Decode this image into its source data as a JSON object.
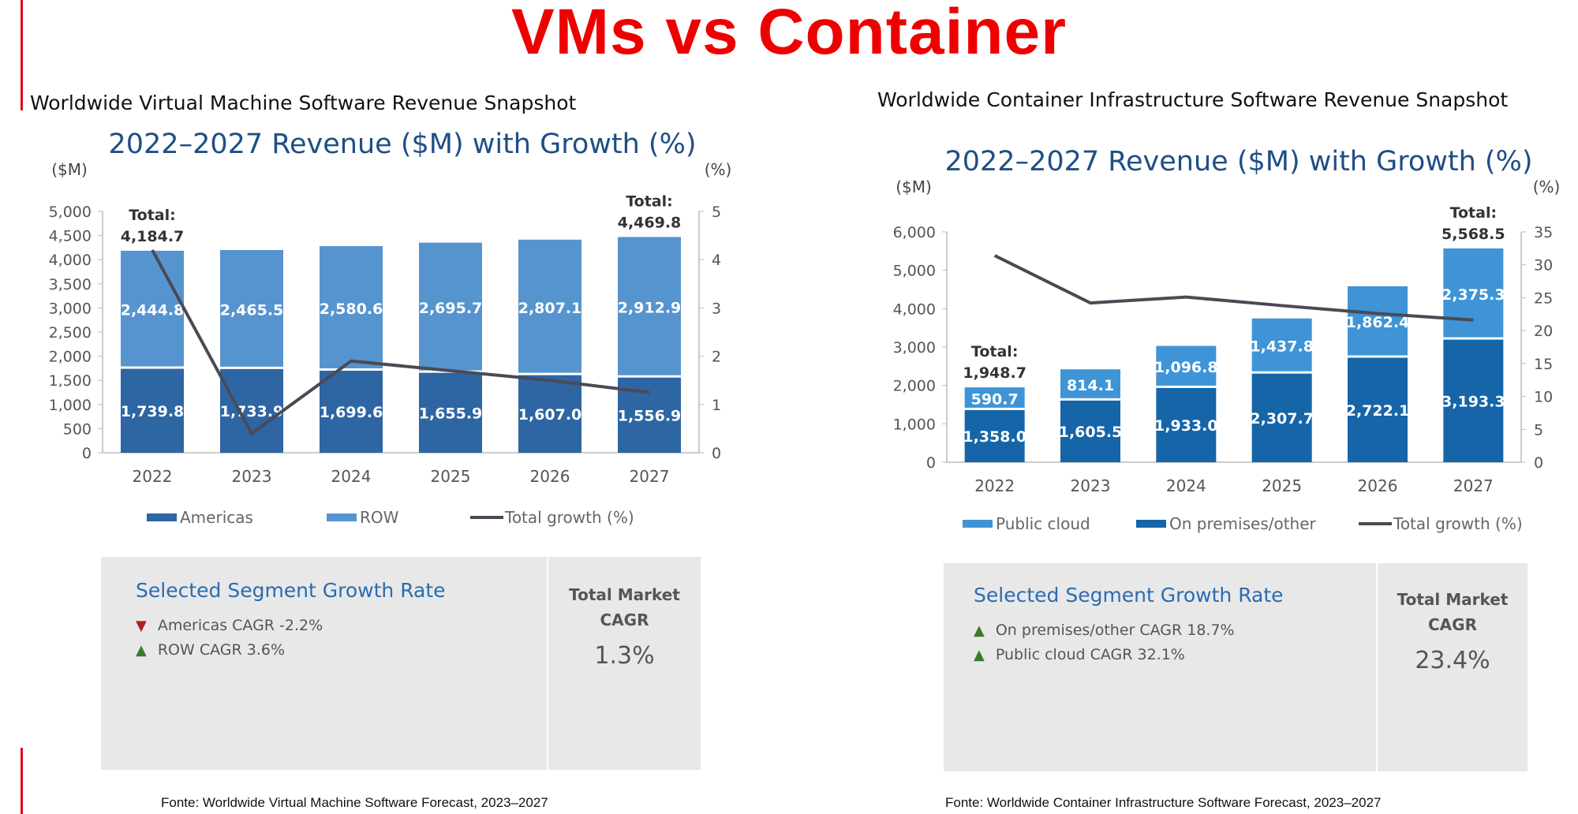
{
  "page_title": "VMs vs Container",
  "colors": {
    "title_red": "#ee0000",
    "vm_americas": "#2e65a3",
    "vm_row": "#5694cf",
    "ct_public_cloud": "#3e94d6",
    "ct_on_prem": "#1565a8",
    "growth_line": "#4a4a55",
    "chart_title": "#1f4e86",
    "segment_title": "#2a6cb0"
  },
  "vm": {
    "snapshot_title": "Worldwide Virtual Machine Software Revenue Snapshot",
    "segment": {
      "title": "Selected Segment Growth Rate",
      "items": [
        {
          "text": "Americas CAGR -2.2%",
          "direction": "down"
        },
        {
          "text": "ROW CAGR 3.6%",
          "direction": "up"
        }
      ],
      "cagr_label_line1": "Total Market",
      "cagr_label_line2": "CAGR",
      "cagr_value": "1.3%"
    },
    "source": "Fonte: Worldwide Virtual Machine Software Forecast, 2023–2027"
  },
  "container": {
    "snapshot_title": "Worldwide Container Infrastructure Software Revenue Snapshot",
    "segment": {
      "title": "Selected Segment Growth Rate",
      "items": [
        {
          "text": "On premises/other CAGR 18.7%",
          "direction": "up"
        },
        {
          "text": "Public cloud CAGR 32.1%",
          "direction": "up"
        }
      ],
      "cagr_label_line1": "Total Market",
      "cagr_label_line2": "CAGR",
      "cagr_value": "23.4%"
    },
    "source": "Fonte: Worldwide Container Infrastructure Software Forecast, 2023–2027"
  },
  "chart_data": [
    {
      "type": "bar",
      "stacked": true,
      "title": "2022–2027 Revenue ($M) with Growth (%)",
      "ylabel": "($M)",
      "y2label": "(%)",
      "categories": [
        "2022",
        "2023",
        "2024",
        "2025",
        "2026",
        "2027"
      ],
      "ylim": [
        0,
        5000
      ],
      "yticks": [
        "0",
        "500",
        "1,000",
        "1,500",
        "2,000",
        "2,500",
        "3,000",
        "3,500",
        "4,000",
        "4,500",
        "5,000"
      ],
      "y2lim": [
        0,
        5
      ],
      "y2ticks": [
        "0",
        "1",
        "2",
        "3",
        "4",
        "5"
      ],
      "series": [
        {
          "name": "Americas",
          "values": [
            1739.8,
            1733.9,
            1699.6,
            1655.9,
            1607.0,
            1556.9
          ],
          "labels": [
            "1,739.8",
            "1,733.9",
            "1,699.6",
            "1,655.9",
            "1,607.0",
            "1,556.9"
          ]
        },
        {
          "name": "ROW",
          "values": [
            2444.8,
            2465.5,
            2580.6,
            2695.7,
            2807.1,
            2912.9
          ],
          "labels": [
            "2,444.8",
            "2,465.5",
            "2,580.6",
            "2,695.7",
            "2,807.1",
            "2,912.9"
          ]
        }
      ],
      "line": {
        "name": "Total growth (%)",
        "values": [
          4.2,
          0.4,
          1.9,
          1.7,
          1.5,
          1.25
        ]
      },
      "totals": [
        {
          "index": 0,
          "label": "Total:",
          "value": "4,184.7"
        },
        {
          "index": 5,
          "label": "Total:",
          "value": "4,469.8"
        }
      ],
      "legend": [
        "Americas",
        "ROW",
        "Total growth (%)"
      ],
      "legend_position": "bottom"
    },
    {
      "type": "bar",
      "stacked": true,
      "title": "2022–2027 Revenue ($M) with Growth (%)",
      "ylabel": "($M)",
      "y2label": "(%)",
      "categories": [
        "2022",
        "2023",
        "2024",
        "2025",
        "2026",
        "2027"
      ],
      "ylim": [
        0,
        6000
      ],
      "yticks": [
        "0",
        "1,000",
        "2,000",
        "3,000",
        "4,000",
        "5,000",
        "6,000"
      ],
      "y2lim": [
        0,
        35
      ],
      "y2ticks": [
        "0",
        "5",
        "10",
        "15",
        "20",
        "25",
        "30",
        "35"
      ],
      "series": [
        {
          "name": "On premises/other",
          "values": [
            1358.0,
            1605.5,
            1933.0,
            2307.7,
            2722.1,
            3193.3
          ],
          "labels": [
            "1,358.0",
            "1,605.5",
            "1,933.0",
            "2,307.7",
            "2,722.1",
            "3,193.3"
          ]
        },
        {
          "name": "Public cloud",
          "values": [
            590.7,
            814.1,
            1096.8,
            1437.8,
            1862.4,
            2375.3
          ],
          "labels": [
            "590.7",
            "814.1",
            "1,096.8",
            "1,437.8",
            "1,862.4",
            "2,375.3"
          ]
        }
      ],
      "line": {
        "name": "Total growth (%)",
        "values": [
          31.4,
          24.2,
          25.1,
          23.8,
          22.6,
          21.6
        ]
      },
      "totals": [
        {
          "index": 0,
          "label": "Total:",
          "value": "1,948.7"
        },
        {
          "index": 5,
          "label": "Total:",
          "value": "5,568.5"
        }
      ],
      "legend": [
        "Public cloud",
        "On premises/other",
        "Total growth (%)"
      ],
      "legend_position": "bottom"
    }
  ]
}
